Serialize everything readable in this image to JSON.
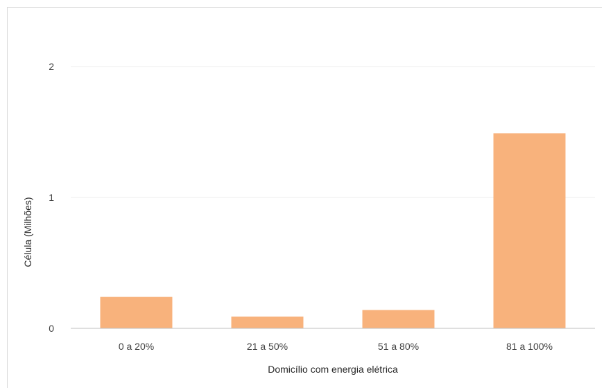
{
  "chart_data": {
    "type": "bar",
    "title": "",
    "xlabel": "Domicílio com energia elétrica",
    "ylabel": "Célula (Milhões)",
    "categories": [
      "0 a 20%",
      "21 a 50%",
      "51 a 80%",
      "81 a 100%"
    ],
    "values": [
      0.24,
      0.09,
      0.14,
      1.49
    ],
    "ylim": [
      0,
      2
    ],
    "yticks": [
      "0",
      "1",
      "2"
    ],
    "grid": true,
    "legend": "none",
    "bar_color": "#f8b27c",
    "grid_color": "#ececec",
    "axis_color": "#bfbfbf"
  }
}
